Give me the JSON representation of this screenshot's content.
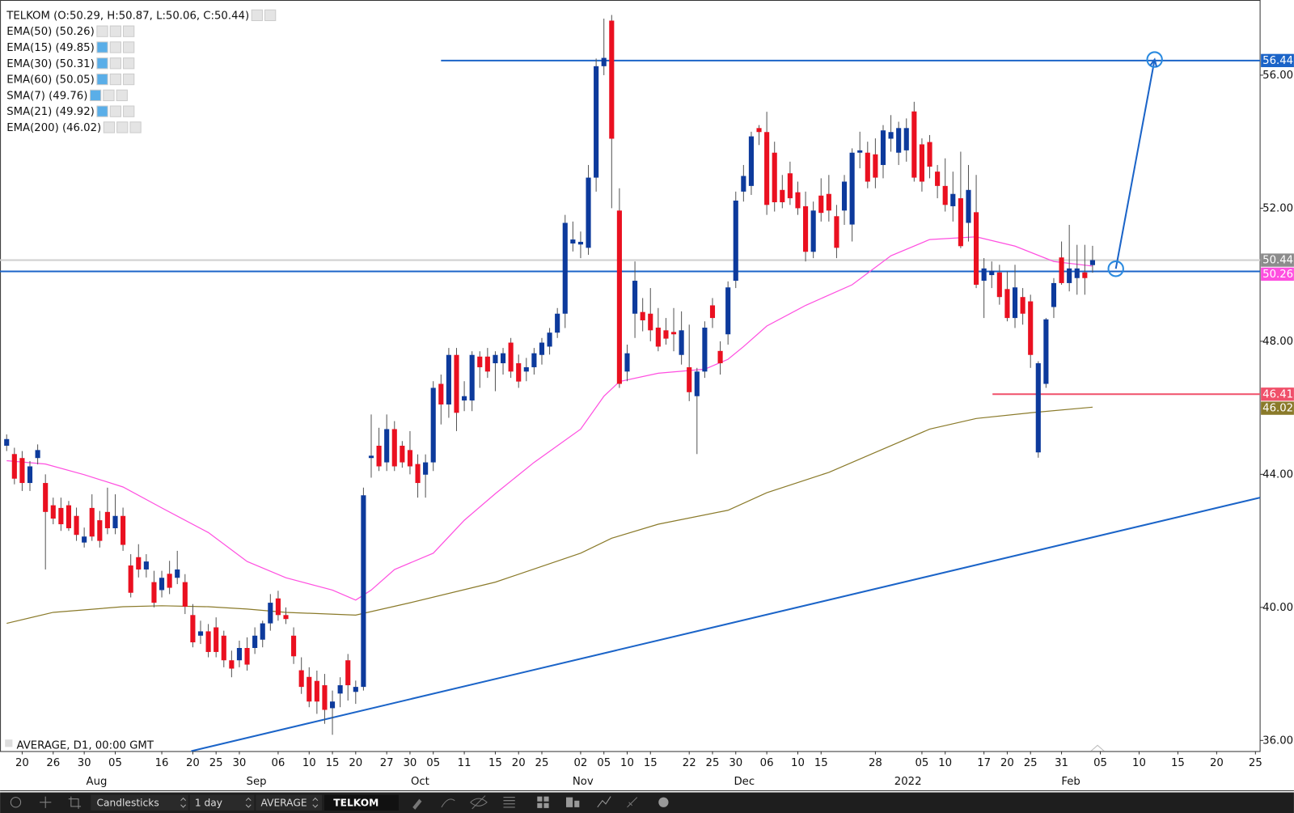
{
  "chart_data": {
    "type": "candlestick",
    "legend": [
      "TELKOM (O:50.29, H:50.87, L:50.06, C:50.44)",
      "EMA(50) (50.26)",
      "EMA(15) (49.85)",
      "EMA(30) (50.31)",
      "EMA(60) (50.05)",
      "SMA(7) (49.76)",
      "SMA(21) (49.92)",
      "EMA(200) (46.02)"
    ],
    "footer_label": "AVERAGE, D1, 00:00 GMT",
    "toolbar": [
      "Candlesticks",
      "1 day",
      "AVERAGE",
      "TELKOM"
    ],
    "up_color": "#0d3a9c",
    "down_color": "#ea1020",
    "xlim": [
      -0.85,
      161.6
    ],
    "ylim": [
      35.68,
      58.26
    ],
    "yticks": [
      {
        "value": 36,
        "label": "36.00"
      },
      {
        "value": 40,
        "label": "40.00"
      },
      {
        "value": 44,
        "label": "44.00"
      },
      {
        "value": 48,
        "label": "48.00"
      },
      {
        "value": 52,
        "label": "52.00"
      },
      {
        "value": 56,
        "label": "56.00"
      }
    ],
    "xticks": [
      {
        "value": 2,
        "label": "20"
      },
      {
        "value": 6,
        "label": "26"
      },
      {
        "value": 10,
        "label": "30"
      },
      {
        "value": 14,
        "label": "05"
      },
      {
        "value": 20,
        "label": "16"
      },
      {
        "value": 24,
        "label": "20"
      },
      {
        "value": 27,
        "label": "25"
      },
      {
        "value": 30,
        "label": "30"
      },
      {
        "value": 35,
        "label": "06"
      },
      {
        "value": 39,
        "label": "10"
      },
      {
        "value": 42,
        "label": "15"
      },
      {
        "value": 45,
        "label": "20"
      },
      {
        "value": 49,
        "label": "27"
      },
      {
        "value": 52,
        "label": "30"
      },
      {
        "value": 55,
        "label": "05"
      },
      {
        "value": 59,
        "label": "11"
      },
      {
        "value": 63,
        "label": "15"
      },
      {
        "value": 66,
        "label": "20"
      },
      {
        "value": 69,
        "label": "25"
      },
      {
        "value": 74,
        "label": "02"
      },
      {
        "value": 77,
        "label": "05"
      },
      {
        "value": 80,
        "label": "10"
      },
      {
        "value": 83,
        "label": "15"
      },
      {
        "value": 88,
        "label": "22"
      },
      {
        "value": 91,
        "label": "25"
      },
      {
        "value": 94,
        "label": "30"
      },
      {
        "value": 98,
        "label": "06"
      },
      {
        "value": 102,
        "label": "10"
      },
      {
        "value": 105,
        "label": "15"
      },
      {
        "value": 112,
        "label": "28"
      },
      {
        "value": 118,
        "label": "05"
      },
      {
        "value": 121,
        "label": "10"
      },
      {
        "value": 126,
        "label": "17"
      },
      {
        "value": 129,
        "label": "20"
      },
      {
        "value": 132,
        "label": "25"
      },
      {
        "value": 136,
        "label": "31"
      },
      {
        "value": 141,
        "label": "05"
      },
      {
        "value": 146,
        "label": "10"
      },
      {
        "value": 151,
        "label": "15"
      },
      {
        "value": 156,
        "label": "20"
      },
      {
        "value": 161,
        "label": "25"
      }
    ],
    "xlabels_major": [
      {
        "value": 11.6,
        "label": "Aug"
      },
      {
        "value": 32.2,
        "label": "Sep"
      },
      {
        "value": 53.3,
        "label": "Oct"
      },
      {
        "value": 74.3,
        "label": "Nov"
      },
      {
        "value": 95.1,
        "label": "Dec"
      },
      {
        "value": 116.2,
        "label": "2022"
      },
      {
        "value": 137.2,
        "label": "Feb"
      }
    ],
    "ohlc": [
      [
        44.86,
        45.2,
        44.7,
        45.06
      ],
      [
        44.61,
        44.8,
        43.7,
        43.87
      ],
      [
        44.49,
        44.7,
        43.5,
        43.74
      ],
      [
        43.74,
        44.4,
        43.5,
        44.24
      ],
      [
        44.49,
        44.9,
        44.3,
        44.73
      ],
      [
        43.74,
        44.0,
        41.14,
        42.87
      ],
      [
        43.07,
        43.3,
        42.5,
        42.67
      ],
      [
        42.99,
        43.3,
        42.3,
        42.5
      ],
      [
        43.07,
        43.2,
        42.3,
        42.38
      ],
      [
        42.75,
        43.0,
        42.0,
        42.18
      ],
      [
        41.95,
        42.4,
        41.8,
        42.13
      ],
      [
        42.99,
        43.4,
        42.0,
        42.13
      ],
      [
        42.62,
        42.9,
        41.8,
        42.0
      ],
      [
        42.87,
        43.6,
        42.2,
        42.38
      ],
      [
        42.38,
        43.4,
        42.2,
        42.75
      ],
      [
        42.75,
        43.0,
        41.7,
        41.88
      ],
      [
        41.26,
        41.6,
        40.3,
        40.44
      ],
      [
        41.51,
        41.9,
        40.9,
        41.14
      ],
      [
        41.14,
        41.6,
        40.9,
        41.38
      ],
      [
        40.76,
        41.1,
        40.0,
        40.14
      ],
      [
        40.52,
        41.1,
        40.3,
        40.89
      ],
      [
        41.01,
        41.4,
        40.4,
        40.59
      ],
      [
        40.89,
        41.7,
        40.7,
        41.14
      ],
      [
        40.76,
        41.0,
        39.8,
        40.02
      ],
      [
        39.77,
        40.1,
        38.8,
        38.95
      ],
      [
        39.15,
        39.6,
        38.9,
        39.28
      ],
      [
        39.28,
        39.5,
        38.5,
        38.66
      ],
      [
        39.4,
        39.7,
        38.5,
        38.66
      ],
      [
        39.15,
        39.3,
        38.2,
        38.41
      ],
      [
        38.41,
        38.7,
        37.9,
        38.16
      ],
      [
        38.41,
        39.0,
        38.2,
        38.78
      ],
      [
        38.78,
        39.1,
        38.1,
        38.28
      ],
      [
        38.78,
        39.4,
        38.6,
        39.15
      ],
      [
        39.03,
        39.6,
        38.8,
        39.52
      ],
      [
        39.52,
        40.4,
        39.3,
        40.14
      ],
      [
        40.27,
        40.5,
        39.6,
        39.77
      ],
      [
        39.77,
        40.0,
        39.5,
        39.65
      ],
      [
        39.15,
        39.4,
        38.3,
        38.53
      ],
      [
        38.11,
        38.5,
        37.4,
        37.61
      ],
      [
        37.91,
        38.2,
        37.0,
        37.17
      ],
      [
        37.79,
        38.1,
        36.8,
        37.17
      ],
      [
        37.66,
        38.0,
        36.5,
        36.92
      ],
      [
        36.97,
        37.5,
        36.17,
        37.17
      ],
      [
        37.41,
        37.9,
        37.0,
        37.66
      ],
      [
        38.41,
        38.6,
        37.2,
        37.66
      ],
      [
        37.46,
        37.8,
        37.1,
        37.61
      ],
      [
        37.61,
        43.6,
        37.5,
        43.37
      ],
      [
        44.49,
        45.8,
        43.9,
        44.56
      ],
      [
        44.86,
        45.4,
        44.1,
        44.24
      ],
      [
        44.36,
        45.8,
        44.1,
        45.36
      ],
      [
        45.36,
        45.6,
        44.1,
        44.24
      ],
      [
        44.86,
        45.0,
        44.2,
        44.36
      ],
      [
        44.73,
        45.3,
        44.0,
        44.24
      ],
      [
        44.31,
        44.6,
        43.3,
        43.74
      ],
      [
        43.99,
        44.6,
        43.3,
        44.36
      ],
      [
        44.36,
        46.8,
        44.1,
        46.6
      ],
      [
        46.72,
        47.0,
        45.5,
        46.1
      ],
      [
        46.1,
        47.8,
        45.7,
        47.59
      ],
      [
        47.59,
        47.8,
        45.3,
        45.85
      ],
      [
        46.22,
        46.8,
        45.9,
        46.35
      ],
      [
        46.22,
        47.7,
        45.9,
        47.59
      ],
      [
        47.54,
        47.7,
        46.6,
        47.22
      ],
      [
        47.54,
        47.8,
        46.9,
        47.09
      ],
      [
        47.34,
        47.7,
        46.5,
        47.59
      ],
      [
        47.34,
        47.8,
        47.0,
        47.64
      ],
      [
        47.96,
        48.1,
        46.9,
        47.09
      ],
      [
        47.34,
        47.6,
        46.6,
        46.79
      ],
      [
        47.09,
        47.5,
        46.8,
        47.22
      ],
      [
        47.22,
        47.8,
        47.0,
        47.64
      ],
      [
        47.59,
        48.1,
        47.3,
        47.96
      ],
      [
        47.84,
        48.4,
        47.6,
        48.26
      ],
      [
        48.26,
        49.0,
        48.1,
        48.83
      ],
      [
        48.83,
        51.8,
        48.4,
        51.56
      ],
      [
        50.94,
        51.6,
        50.7,
        51.06
      ],
      [
        50.91,
        51.3,
        50.5,
        50.99
      ],
      [
        50.81,
        53.3,
        50.6,
        52.92
      ],
      [
        52.92,
        56.5,
        52.5,
        56.27
      ],
      [
        56.27,
        57.7,
        56.0,
        56.52
      ],
      [
        57.64,
        57.81,
        52.0,
        54.09
      ],
      [
        51.93,
        52.6,
        46.6,
        46.72
      ],
      [
        47.09,
        47.9,
        46.8,
        47.64
      ],
      [
        48.83,
        50.4,
        48.1,
        49.82
      ],
      [
        48.88,
        49.3,
        48.3,
        48.63
      ],
      [
        48.83,
        49.6,
        48.0,
        48.33
      ],
      [
        48.41,
        49.0,
        47.7,
        47.84
      ],
      [
        48.33,
        48.7,
        47.9,
        48.08
      ],
      [
        48.28,
        49.0,
        47.7,
        48.21
      ],
      [
        47.59,
        48.9,
        47.3,
        48.33
      ],
      [
        47.22,
        48.5,
        46.2,
        46.47
      ],
      [
        46.35,
        47.2,
        44.61,
        47.09
      ],
      [
        47.09,
        48.6,
        46.9,
        48.41
      ],
      [
        49.08,
        49.3,
        48.4,
        48.7
      ],
      [
        47.71,
        48.0,
        47.0,
        47.34
      ],
      [
        48.21,
        49.8,
        47.9,
        49.62
      ],
      [
        49.82,
        52.5,
        49.6,
        52.23
      ],
      [
        52.5,
        53.3,
        52.2,
        52.97
      ],
      [
        52.67,
        54.3,
        52.4,
        54.16
      ],
      [
        54.41,
        54.5,
        53.9,
        54.29
      ],
      [
        54.29,
        54.9,
        51.8,
        52.1
      ],
      [
        53.67,
        54.0,
        51.9,
        52.18
      ],
      [
        52.55,
        53.0,
        52.0,
        52.18
      ],
      [
        53.05,
        53.4,
        52.1,
        52.3
      ],
      [
        52.48,
        52.8,
        51.8,
        52.0
      ],
      [
        52.06,
        52.5,
        50.4,
        50.69
      ],
      [
        50.69,
        52.2,
        50.5,
        51.93
      ],
      [
        52.38,
        52.9,
        51.6,
        51.86
      ],
      [
        52.43,
        53.0,
        51.6,
        51.93
      ],
      [
        51.76,
        52.1,
        50.5,
        50.81
      ],
      [
        51.93,
        53.0,
        51.5,
        52.8
      ],
      [
        51.51,
        53.8,
        51.0,
        53.67
      ],
      [
        53.67,
        54.3,
        53.2,
        53.74
      ],
      [
        53.67,
        54.0,
        52.6,
        52.8
      ],
      [
        53.62,
        54.1,
        52.6,
        52.92
      ],
      [
        53.3,
        54.5,
        52.9,
        54.34
      ],
      [
        54.09,
        54.8,
        53.7,
        54.29
      ],
      [
        53.67,
        54.6,
        53.3,
        54.41
      ],
      [
        53.74,
        54.7,
        53.4,
        54.41
      ],
      [
        54.91,
        55.2,
        52.8,
        52.92
      ],
      [
        53.92,
        54.1,
        52.5,
        52.8
      ],
      [
        53.99,
        54.2,
        52.9,
        53.25
      ],
      [
        53.1,
        53.3,
        52.3,
        52.67
      ],
      [
        52.67,
        53.5,
        51.9,
        52.1
      ],
      [
        52.06,
        53.1,
        51.6,
        52.43
      ],
      [
        52.3,
        53.7,
        50.8,
        50.86
      ],
      [
        51.56,
        53.3,
        51.0,
        52.55
      ],
      [
        51.88,
        53.0,
        49.6,
        49.7
      ],
      [
        49.82,
        50.5,
        48.7,
        50.19
      ],
      [
        49.99,
        50.4,
        49.6,
        50.12
      ],
      [
        50.07,
        50.3,
        49.1,
        49.33
      ],
      [
        49.57,
        50.1,
        48.6,
        48.7
      ],
      [
        48.7,
        50.3,
        48.4,
        49.62
      ],
      [
        49.33,
        49.6,
        48.5,
        48.83
      ],
      [
        49.2,
        49.4,
        47.2,
        47.59
      ],
      [
        44.66,
        47.4,
        44.5,
        47.34
      ],
      [
        46.72,
        48.7,
        46.6,
        48.66
      ],
      [
        49.03,
        49.9,
        48.7,
        49.75
      ],
      [
        50.52,
        51.0,
        49.7,
        49.75
      ],
      [
        49.75,
        51.5,
        49.5,
        50.19
      ],
      [
        49.9,
        50.9,
        49.4,
        50.19
      ],
      [
        50.07,
        50.9,
        49.4,
        49.9
      ],
      [
        50.29,
        50.87,
        50.06,
        50.44
      ]
    ],
    "lines": [
      {
        "color": "#ff4fe0",
        "x": [
          0,
          5,
          10,
          15,
          20,
          26,
          31,
          36,
          42,
          45,
          47,
          50,
          55,
          59,
          63,
          68,
          74,
          77,
          79,
          84,
          90,
          93,
          95,
          98,
          103,
          109,
          114,
          119,
          125,
          130,
          135,
          140
        ],
        "values": [
          44.41,
          44.31,
          43.99,
          43.62,
          42.99,
          42.25,
          41.38,
          40.89,
          40.52,
          40.22,
          40.52,
          41.14,
          41.63,
          42.62,
          43.42,
          44.36,
          45.36,
          46.35,
          46.79,
          47.04,
          47.16,
          47.46,
          47.84,
          48.46,
          49.08,
          49.7,
          50.57,
          51.06,
          51.14,
          50.86,
          50.4,
          50.26
        ]
      },
      {
        "color": "#8a7a2a",
        "x": [
          0,
          6,
          15,
          20,
          26,
          31,
          36,
          45,
          52,
          63,
          74,
          78,
          84,
          93,
          98,
          106,
          112,
          119,
          125,
          132,
          140
        ],
        "values": [
          39.52,
          39.85,
          40.02,
          40.05,
          40.02,
          39.95,
          39.85,
          39.77,
          40.14,
          40.76,
          41.63,
          42.08,
          42.5,
          42.92,
          43.45,
          44.06,
          44.66,
          45.36,
          45.68,
          45.85,
          46.02
        ]
      }
    ],
    "levels": [
      {
        "value": 56.44,
        "from": 56,
        "color": "#1b64c8"
      },
      {
        "value": 50.1,
        "from": -0.85,
        "color": "#1b64c8"
      },
      {
        "value": 50.44,
        "from": -0.85,
        "color": "#d0d0d0"
      },
      {
        "value": 46.41,
        "from": 127.1,
        "color": "#f0506a"
      }
    ],
    "price_tags": [
      {
        "value": 56.44,
        "label": "56.44",
        "color": "#1b64c8"
      },
      {
        "value": 50.44,
        "label": "50.44",
        "color": "#8c8c8c"
      },
      {
        "value": 50.26,
        "label": "50.26",
        "color": "#ff4fe0"
      },
      {
        "value": 46.41,
        "label": "46.41",
        "color": "#f0506a"
      },
      {
        "value": 46.02,
        "label": "46.02",
        "color": "#8a7a2a"
      }
    ],
    "trendline": {
      "color": "#1b64c8",
      "x": [
        23.8,
        161.6
      ],
      "values": [
        35.68,
        43.3
      ]
    },
    "projection": {
      "color": "#1b64c8",
      "x": [
        143,
        148
      ],
      "values": [
        50.18,
        56.47
      ]
    }
  }
}
